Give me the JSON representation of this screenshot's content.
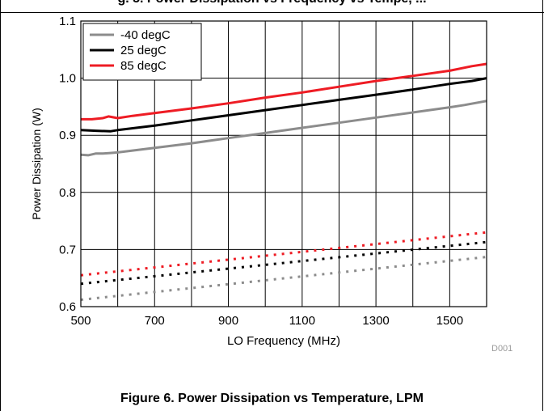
{
  "header": {
    "title_fragment": "g. 5. Power Dissipation vs Frequency vs Tempe, ..."
  },
  "caption": {
    "text": "Figure 6. Power Dissipation vs Temperature, LPM"
  },
  "watermark": "D001",
  "colors": {
    "minus40": "#8c8c8c",
    "25": "#000000",
    "85": "#ee1c24"
  },
  "chart_data": {
    "type": "line",
    "title": "",
    "xlabel": "LO Frequency (MHz)",
    "ylabel": "Power Dissipation (W)",
    "xlim": [
      500,
      1600
    ],
    "ylim": [
      0.6,
      1.1
    ],
    "xticks": [
      500,
      700,
      900,
      1100,
      1300,
      1500
    ],
    "yticks": [
      "0.6",
      "0.7",
      "0.8",
      "0.9",
      "1.0",
      "1.1"
    ],
    "grid": true,
    "legend_position": "top-left",
    "legend": [
      "-40 degC",
      "25 degC",
      "85 degC"
    ],
    "series": [
      {
        "name": "-40 degC",
        "color": "#8c8c8c",
        "style": "solid",
        "x": [
          500,
          520,
          540,
          560,
          580,
          600,
          700,
          800,
          900,
          1000,
          1100,
          1200,
          1300,
          1400,
          1500,
          1540,
          1600
        ],
        "y": [
          0.866,
          0.865,
          0.868,
          0.868,
          0.869,
          0.87,
          0.878,
          0.886,
          0.895,
          0.904,
          0.913,
          0.922,
          0.931,
          0.94,
          0.949,
          0.953,
          0.96
        ]
      },
      {
        "name": "25 degC",
        "color": "#000000",
        "style": "solid",
        "x": [
          500,
          540,
          580,
          600,
          700,
          800,
          900,
          1000,
          1100,
          1200,
          1300,
          1400,
          1500,
          1560,
          1600
        ],
        "y": [
          0.909,
          0.908,
          0.907,
          0.909,
          0.917,
          0.926,
          0.935,
          0.944,
          0.953,
          0.962,
          0.971,
          0.98,
          0.99,
          0.995,
          1.0
        ]
      },
      {
        "name": "85 degC",
        "color": "#ee1c24",
        "style": "solid",
        "x": [
          500,
          530,
          560,
          575,
          600,
          640,
          700,
          800,
          900,
          1000,
          1100,
          1200,
          1300,
          1400,
          1500,
          1560,
          1600
        ],
        "y": [
          0.928,
          0.928,
          0.93,
          0.933,
          0.93,
          0.934,
          0.939,
          0.947,
          0.956,
          0.966,
          0.975,
          0.985,
          0.995,
          1.004,
          1.013,
          1.021,
          1.025
        ]
      },
      {
        "name": "",
        "color": "#8c8c8c",
        "style": "dotted",
        "x": [
          500,
          1600
        ],
        "y": [
          0.612,
          0.687
        ]
      },
      {
        "name": "",
        "color": "#000000",
        "style": "dotted",
        "x": [
          500,
          1600
        ],
        "y": [
          0.64,
          0.713
        ]
      },
      {
        "name": "",
        "color": "#ee1c24",
        "style": "dotted",
        "x": [
          500,
          1600
        ],
        "y": [
          0.655,
          0.73
        ]
      }
    ]
  }
}
